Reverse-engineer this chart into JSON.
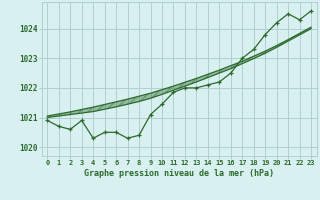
{
  "x": [
    0,
    1,
    2,
    3,
    4,
    5,
    6,
    7,
    8,
    9,
    10,
    11,
    12,
    13,
    14,
    15,
    16,
    17,
    18,
    19,
    20,
    21,
    22,
    23
  ],
  "y_main": [
    1020.9,
    1020.7,
    1020.6,
    1020.9,
    1020.3,
    1020.5,
    1020.5,
    1020.3,
    1020.4,
    1021.1,
    1021.45,
    1021.85,
    1022.0,
    1022.0,
    1022.1,
    1022.2,
    1022.5,
    1023.0,
    1023.3,
    1023.8,
    1024.2,
    1024.5,
    1024.3,
    1024.6
  ],
  "y_trend1": [
    1021.0,
    1021.05,
    1021.1,
    1021.15,
    1021.2,
    1021.28,
    1021.36,
    1021.45,
    1021.54,
    1021.65,
    1021.78,
    1021.92,
    1022.06,
    1022.2,
    1022.35,
    1022.5,
    1022.65,
    1022.82,
    1022.99,
    1023.17,
    1023.37,
    1023.58,
    1023.79,
    1024.0
  ],
  "y_trend2": [
    1021.05,
    1021.12,
    1021.19,
    1021.27,
    1021.35,
    1021.44,
    1021.53,
    1021.62,
    1021.72,
    1021.82,
    1021.94,
    1022.06,
    1022.19,
    1022.32,
    1022.46,
    1022.6,
    1022.75,
    1022.9,
    1023.07,
    1023.24,
    1023.43,
    1023.63,
    1023.84,
    1024.05
  ],
  "line_color": "#2d6a2d",
  "bg_color": "#d8f0f0",
  "grid_color": "#b0d0d0",
  "axis_label_color": "#2d6a2d",
  "ylabel_ticks": [
    1020,
    1021,
    1022,
    1023,
    1024
  ],
  "xlabel": "Graphe pression niveau de la mer (hPa)",
  "xlim": [
    -0.5,
    23.5
  ],
  "ylim": [
    1019.7,
    1024.9
  ],
  "xtick_labels": [
    "0",
    "1",
    "2",
    "3",
    "4",
    "5",
    "6",
    "7",
    "8",
    "9",
    "10",
    "11",
    "12",
    "13",
    "14",
    "15",
    "16",
    "17",
    "18",
    "19",
    "20",
    "21",
    "22",
    "23"
  ]
}
